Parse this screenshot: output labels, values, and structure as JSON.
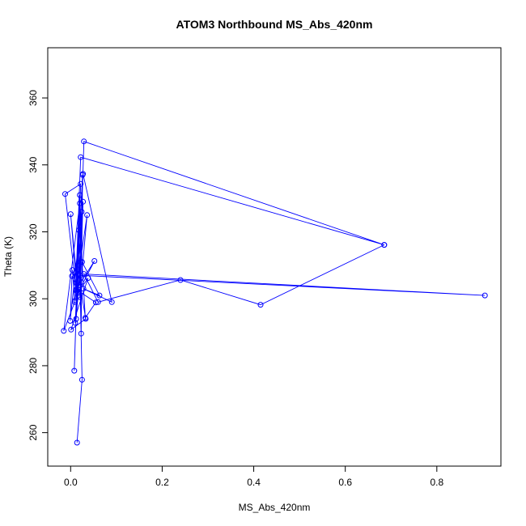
{
  "chart_data": {
    "type": "line",
    "title": "ATOM3 Northbound MS_Abs_420nm",
    "xlabel": "MS_Abs_420nm",
    "ylabel": "Theta (K)",
    "xlim": [
      -0.05,
      0.94
    ],
    "ylim": [
      250,
      375
    ],
    "xticks": [
      0,
      0.2,
      0.4,
      0.6,
      0.8
    ],
    "xtick_labels": [
      "0.0",
      "0.2",
      "0.4",
      "0.6",
      "0.8"
    ],
    "yticks": [
      260,
      280,
      300,
      320,
      340,
      360
    ],
    "ytick_labels": [
      "260",
      "280",
      "300",
      "320",
      "340",
      "360"
    ],
    "grid": false,
    "legend": "none",
    "series_color": "#0000ff",
    "marker": "open-circle",
    "points": [
      {
        "x": 0.014,
        "y": 257.0
      },
      {
        "x": 0.025,
        "y": 275.8
      },
      {
        "x": 0.018,
        "y": 320.5
      },
      {
        "x": 0.008,
        "y": 278.5
      },
      {
        "x": 0.02,
        "y": 331.0
      },
      {
        "x": 0.023,
        "y": 289.6
      },
      {
        "x": 0.026,
        "y": 337.0
      },
      {
        "x": 0.01,
        "y": 292.8
      },
      {
        "x": 0.022,
        "y": 311.0
      },
      {
        "x": 0.012,
        "y": 294.0
      },
      {
        "x": 0.024,
        "y": 326.0
      },
      {
        "x": -0.001,
        "y": 293.4
      },
      {
        "x": 0.003,
        "y": 306.8
      },
      {
        "x": 0.017,
        "y": 301.0
      },
      {
        "x": 0.0,
        "y": 325.3
      },
      {
        "x": 0.014,
        "y": 302.4
      },
      {
        "x": 0.004,
        "y": 308.6
      },
      {
        "x": 0.009,
        "y": 299.0
      },
      {
        "x": -0.015,
        "y": 290.4
      },
      {
        "x": 0.02,
        "y": 328.5
      },
      {
        "x": 0.012,
        "y": 302.5
      },
      {
        "x": 0.036,
        "y": 325.0
      },
      {
        "x": 0.02,
        "y": 300.5
      },
      {
        "x": 0.027,
        "y": 329.0
      },
      {
        "x": 0.018,
        "y": 304.0
      },
      {
        "x": 0.052,
        "y": 311.3
      },
      {
        "x": 0.016,
        "y": 301.8
      },
      {
        "x": 0.038,
        "y": 306.2
      },
      {
        "x": 0.001,
        "y": 290.8
      },
      {
        "x": 0.033,
        "y": 294.0
      },
      {
        "x": 0.015,
        "y": 308.8
      },
      {
        "x": 0.022,
        "y": 334.3
      },
      {
        "x": -0.012,
        "y": 331.3
      },
      {
        "x": 0.012,
        "y": 302.8
      },
      {
        "x": 0.055,
        "y": 298.9
      },
      {
        "x": 0.032,
        "y": 294.3
      },
      {
        "x": 0.025,
        "y": 311.0
      },
      {
        "x": 0.063,
        "y": 301.0
      },
      {
        "x": 0.028,
        "y": 303.0
      },
      {
        "x": 0.09,
        "y": 299.0
      },
      {
        "x": 0.027,
        "y": 337.3
      },
      {
        "x": 0.01,
        "y": 299.5
      },
      {
        "x": 0.022,
        "y": 342.3
      },
      {
        "x": 0.685,
        "y": 316.1
      },
      {
        "x": 0.029,
        "y": 347.0
      },
      {
        "x": 0.02,
        "y": 307.0
      },
      {
        "x": 0.905,
        "y": 301.0
      },
      {
        "x": 0.029,
        "y": 307.4
      },
      {
        "x": 0.06,
        "y": 299.0
      },
      {
        "x": 0.24,
        "y": 305.6
      },
      {
        "x": 0.415,
        "y": 298.2
      },
      {
        "x": 0.685,
        "y": 316.1
      }
    ]
  }
}
